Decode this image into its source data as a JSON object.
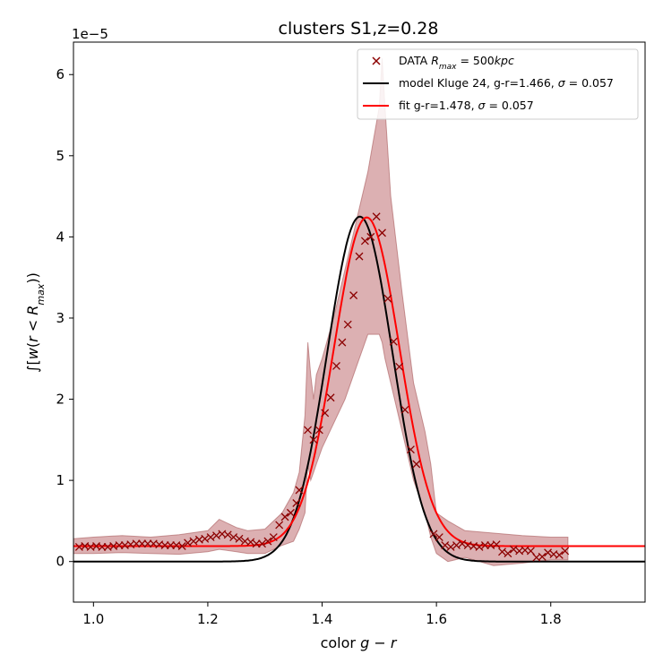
{
  "chart_data": {
    "type": "line",
    "title": "clusters S1,z=0.28",
    "xlabel": "color g − r",
    "ylabel": "∫[w(r<R_max))",
    "offset_text": "1e−5",
    "scale": 1e-05,
    "xlim": [
      0.965,
      1.965
    ],
    "ylim": [
      -0.5,
      6.4
    ],
    "x_ticks": [
      1.0,
      1.2,
      1.4,
      1.6,
      1.8
    ],
    "x_tick_labels": [
      "1.0",
      "1.2",
      "1.4",
      "1.6",
      "1.8"
    ],
    "y_ticks": [
      0,
      1,
      2,
      3,
      4,
      5,
      6
    ],
    "y_tick_labels": [
      "0",
      "1",
      "2",
      "3",
      "4",
      "5",
      "6"
    ],
    "grid": false,
    "legend_position": "top-right",
    "legend": [
      {
        "label": "DATA R_max = 500kpc",
        "color": "#8b0000",
        "marker": "x"
      },
      {
        "label": "model Kluge 24, g-r=1.466, σ = 0.057",
        "color": "#000000",
        "marker": "line"
      },
      {
        "label": "fit g-r=1.478, σ = 0.057",
        "color": "#ff0000",
        "marker": "line"
      }
    ],
    "colors": {
      "data": "#8b0000",
      "band": "#c47c7e",
      "model": "#000000",
      "fit": "#ff0000"
    },
    "data_points": {
      "x": [
        0.975,
        0.985,
        0.995,
        1.005,
        1.015,
        1.025,
        1.035,
        1.045,
        1.055,
        1.065,
        1.075,
        1.085,
        1.095,
        1.105,
        1.115,
        1.125,
        1.135,
        1.145,
        1.155,
        1.165,
        1.175,
        1.185,
        1.195,
        1.205,
        1.215,
        1.225,
        1.235,
        1.245,
        1.255,
        1.265,
        1.275,
        1.285,
        1.295,
        1.305,
        1.315,
        1.325,
        1.335,
        1.345,
        1.355,
        1.36,
        1.375,
        1.385,
        1.395,
        1.405,
        1.415,
        1.425,
        1.435,
        1.445,
        1.455,
        1.465,
        1.475,
        1.485,
        1.495,
        1.505,
        1.515,
        1.525,
        1.535,
        1.545,
        1.555,
        1.565,
        1.595,
        1.605,
        1.615,
        1.625,
        1.635,
        1.645,
        1.655,
        1.665,
        1.675,
        1.685,
        1.695,
        1.705,
        1.715,
        1.725,
        1.735,
        1.745,
        1.755,
        1.765,
        1.775,
        1.785,
        1.795,
        1.805,
        1.815,
        1.825
      ],
      "y": [
        0.18,
        0.19,
        0.18,
        0.19,
        0.18,
        0.18,
        0.19,
        0.2,
        0.2,
        0.21,
        0.22,
        0.22,
        0.22,
        0.22,
        0.21,
        0.2,
        0.2,
        0.2,
        0.19,
        0.23,
        0.25,
        0.27,
        0.28,
        0.3,
        0.32,
        0.34,
        0.33,
        0.3,
        0.28,
        0.25,
        0.24,
        0.22,
        0.22,
        0.25,
        0.3,
        0.45,
        0.55,
        0.6,
        0.72,
        0.88,
        1.62,
        1.5,
        1.62,
        1.83,
        2.02,
        2.41,
        2.7,
        2.92,
        3.28,
        3.76,
        3.95,
        4.0,
        4.25,
        4.05,
        3.24,
        2.71,
        2.4,
        1.87,
        1.38,
        1.2,
        0.34,
        0.3,
        0.2,
        0.18,
        0.2,
        0.22,
        0.2,
        0.19,
        0.18,
        0.2,
        0.2,
        0.21,
        0.12,
        0.1,
        0.15,
        0.13,
        0.14,
        0.13,
        0.05,
        0.06,
        0.11,
        0.09,
        0.08,
        0.13
      ]
    },
    "band": {
      "x": [
        0.965,
        1.0,
        1.05,
        1.1,
        1.15,
        1.2,
        1.22,
        1.25,
        1.27,
        1.3,
        1.33,
        1.35,
        1.36,
        1.37,
        1.375,
        1.38,
        1.385,
        1.39,
        1.4,
        1.42,
        1.44,
        1.46,
        1.48,
        1.49,
        1.5,
        1.505,
        1.51,
        1.52,
        1.54,
        1.56,
        1.58,
        1.59,
        1.6,
        1.62,
        1.65,
        1.7,
        1.75,
        1.8,
        1.83
      ],
      "upper": [
        0.28,
        0.3,
        0.32,
        0.3,
        0.33,
        0.38,
        0.52,
        0.42,
        0.38,
        0.4,
        0.6,
        0.85,
        1.1,
        1.8,
        2.7,
        2.3,
        2.0,
        2.3,
        2.5,
        3.0,
        3.6,
        4.2,
        4.8,
        5.2,
        5.6,
        6.2,
        5.6,
        4.5,
        3.3,
        2.2,
        1.6,
        1.2,
        0.6,
        0.5,
        0.38,
        0.35,
        0.32,
        0.3,
        0.3
      ],
      "lower": [
        0.1,
        0.1,
        0.11,
        0.1,
        0.09,
        0.12,
        0.15,
        0.12,
        0.1,
        0.1,
        0.2,
        0.25,
        0.4,
        0.6,
        1.2,
        1.0,
        1.1,
        1.2,
        1.4,
        1.7,
        2.0,
        2.4,
        2.8,
        2.8,
        2.8,
        2.7,
        2.5,
        2.2,
        1.6,
        1.0,
        0.6,
        0.3,
        0.1,
        0.0,
        0.05,
        -0.05,
        -0.02,
        0.02,
        0.02
      ]
    },
    "model_curve": {
      "mean": 1.466,
      "sigma": 0.057,
      "amplitude": 4.25,
      "baseline": 0.0
    },
    "fit_curve": {
      "mean": 1.478,
      "sigma": 0.057,
      "amplitude": 4.05,
      "baseline": 0.19
    }
  }
}
